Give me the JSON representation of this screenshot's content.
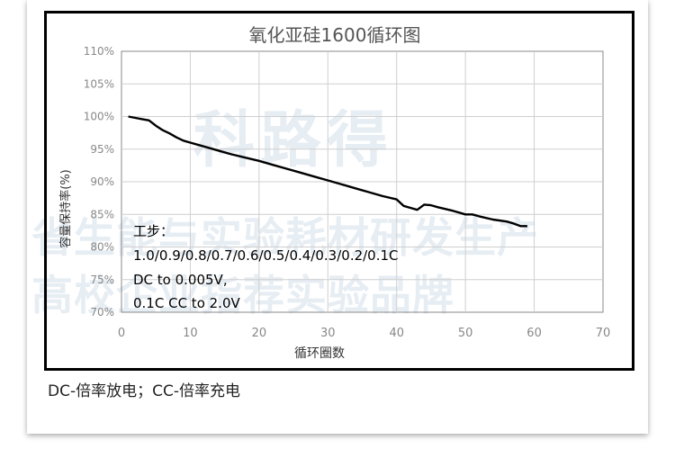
{
  "caption": "DC-倍率放电；CC-倍率充电",
  "watermark": {
    "logo": "科路得",
    "line1": "省生能与实验耗材研发生产",
    "line2": "高校企业指荐实验品牌"
  },
  "chart_data": {
    "type": "line",
    "title": "氧化亚硅1600循环图",
    "xlabel": "循环圈数",
    "ylabel": "容量保持率(%)",
    "xlim": [
      0,
      70
    ],
    "ylim": [
      70,
      110
    ],
    "x_ticks": [
      "0",
      "10",
      "20",
      "30",
      "40",
      "50",
      "60",
      "70"
    ],
    "y_ticks": [
      "70%",
      "75%",
      "80%",
      "85%",
      "90%",
      "95%",
      "100%",
      "105%",
      "110%"
    ],
    "grid": true,
    "series": [
      {
        "name": "",
        "color": "#000000",
        "x": [
          1,
          2,
          3,
          4,
          5,
          6,
          7,
          8,
          9,
          10,
          12,
          14,
          16,
          18,
          20,
          22,
          24,
          26,
          28,
          30,
          32,
          34,
          36,
          38,
          40,
          41,
          42,
          43,
          44,
          45,
          46,
          48,
          50,
          51,
          52,
          54,
          56,
          57,
          58,
          59
        ],
        "y": [
          100.0,
          99.8,
          99.6,
          99.4,
          98.6,
          97.9,
          97.4,
          96.8,
          96.3,
          96.0,
          95.4,
          94.8,
          94.2,
          93.7,
          93.2,
          92.6,
          92.0,
          91.4,
          90.8,
          90.2,
          89.6,
          89.0,
          88.4,
          87.8,
          87.3,
          86.3,
          86.0,
          85.7,
          86.5,
          86.4,
          86.1,
          85.6,
          85.0,
          85.0,
          84.7,
          84.2,
          83.9,
          83.6,
          83.2,
          83.2
        ]
      }
    ],
    "annotation_lines": [
      "工步：",
      "1.0/0.9/0.8/0.7/0.6/0.5/0.4/0.3/0.2/0.1C",
      "DC to 0.005V,",
      "0.1C CC to 2.0V"
    ]
  }
}
